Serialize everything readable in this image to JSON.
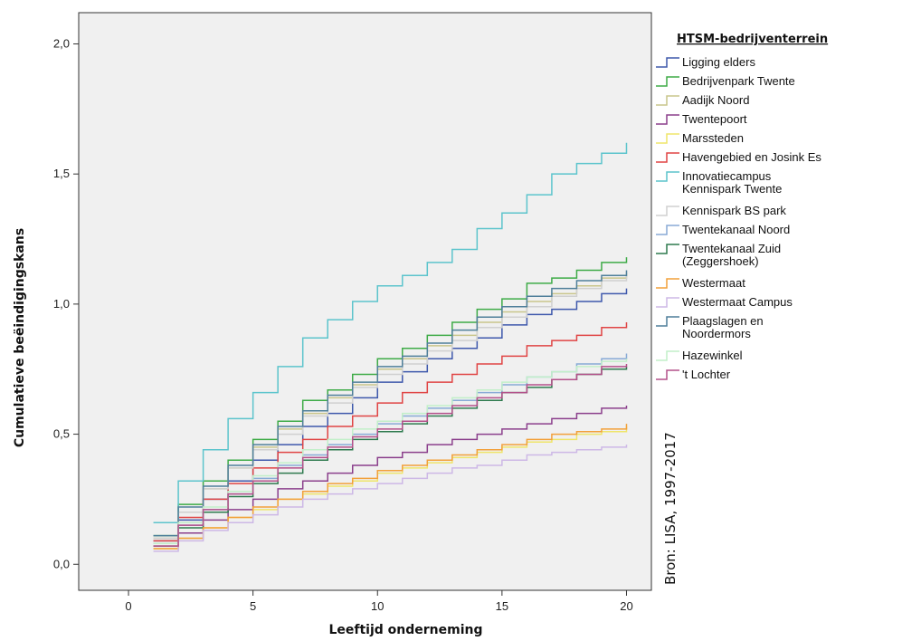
{
  "chart_data": {
    "type": "line",
    "step": true,
    "xlabel": "Leeftijd onderneming",
    "ylabel": "Cumulatieve beëindigingskans",
    "xlim": [
      -2,
      21
    ],
    "ylim": [
      -0.1,
      2.12
    ],
    "xticks": [
      0,
      5,
      10,
      15,
      20
    ],
    "xtick_labels": [
      "0",
      "5",
      "10",
      "15",
      "20"
    ],
    "yticks": [
      0,
      0.5,
      1.0,
      1.5,
      2.0
    ],
    "ytick_labels": [
      "0,0",
      "0,5",
      "1,0",
      "1,5",
      "2,0"
    ],
    "grid": false,
    "plot_background": "#f0f0f0",
    "legend": {
      "title": "HTSM-bedrijventerrein",
      "placement": "right"
    },
    "source_note": "Bron: LISA, 1997-2017",
    "x": [
      1,
      2,
      3,
      4,
      5,
      6,
      7,
      8,
      9,
      10,
      11,
      12,
      13,
      14,
      15,
      16,
      17,
      18,
      19,
      20
    ],
    "series": [
      {
        "name": "Ligging elders",
        "color": "#3e58ac",
        "values": [
          0.09,
          0.17,
          0.25,
          0.32,
          0.4,
          0.46,
          0.53,
          0.58,
          0.64,
          0.7,
          0.74,
          0.79,
          0.83,
          0.87,
          0.92,
          0.96,
          0.98,
          1.01,
          1.04,
          1.06
        ]
      },
      {
        "name": "Bedrijvenpark Twente",
        "color": "#3eab47",
        "values": [
          0.11,
          0.23,
          0.32,
          0.4,
          0.48,
          0.55,
          0.63,
          0.67,
          0.73,
          0.79,
          0.83,
          0.88,
          0.93,
          0.98,
          1.02,
          1.08,
          1.1,
          1.13,
          1.16,
          1.18
        ]
      },
      {
        "name": "Aadijk Noord",
        "color": "#c9c58b",
        "values": [
          0.1,
          0.2,
          0.29,
          0.37,
          0.45,
          0.52,
          0.58,
          0.64,
          0.69,
          0.75,
          0.79,
          0.84,
          0.88,
          0.93,
          0.97,
          1.01,
          1.04,
          1.07,
          1.1,
          1.12
        ]
      },
      {
        "name": "Twentepoort",
        "color": "#8b3f8c",
        "values": [
          0.08,
          0.12,
          0.17,
          0.21,
          0.25,
          0.29,
          0.32,
          0.35,
          0.38,
          0.41,
          0.43,
          0.46,
          0.48,
          0.5,
          0.52,
          0.54,
          0.56,
          0.58,
          0.6,
          0.61
        ]
      },
      {
        "name": "Marssteden",
        "color": "#efe56a",
        "values": [
          0.06,
          0.1,
          0.14,
          0.18,
          0.21,
          0.25,
          0.27,
          0.3,
          0.32,
          0.35,
          0.37,
          0.39,
          0.41,
          0.43,
          0.45,
          0.47,
          0.48,
          0.5,
          0.51,
          0.53
        ]
      },
      {
        "name": "Havengebied en Josink Es",
        "color": "#e04444",
        "values": [
          0.09,
          0.18,
          0.25,
          0.31,
          0.37,
          0.43,
          0.48,
          0.53,
          0.57,
          0.62,
          0.66,
          0.7,
          0.73,
          0.77,
          0.8,
          0.84,
          0.86,
          0.88,
          0.91,
          0.93
        ]
      },
      {
        "name": "Innovatiecampus Kennispark Twente",
        "color": "#5cc4cc",
        "values": [
          0.16,
          0.32,
          0.44,
          0.56,
          0.66,
          0.76,
          0.87,
          0.94,
          1.01,
          1.07,
          1.11,
          1.16,
          1.21,
          1.29,
          1.35,
          1.42,
          1.5,
          1.54,
          1.58,
          1.62
        ]
      },
      {
        "name": "Kennispark BS park",
        "color": "#d0d0d0",
        "values": [
          0.1,
          0.2,
          0.29,
          0.37,
          0.44,
          0.5,
          0.57,
          0.62,
          0.68,
          0.73,
          0.77,
          0.82,
          0.86,
          0.91,
          0.95,
          0.99,
          1.03,
          1.06,
          1.09,
          1.11
        ]
      },
      {
        "name": "Twentekanaal Noord",
        "color": "#88aad6",
        "values": [
          0.08,
          0.15,
          0.21,
          0.27,
          0.33,
          0.38,
          0.42,
          0.46,
          0.5,
          0.54,
          0.57,
          0.6,
          0.63,
          0.66,
          0.69,
          0.72,
          0.74,
          0.77,
          0.79,
          0.81
        ]
      },
      {
        "name": "Twentekanaal Zuid (Zeggershoek)",
        "color": "#2e7a4e",
        "values": [
          0.07,
          0.14,
          0.2,
          0.26,
          0.31,
          0.35,
          0.4,
          0.44,
          0.48,
          0.51,
          0.54,
          0.57,
          0.6,
          0.63,
          0.66,
          0.68,
          0.71,
          0.73,
          0.75,
          0.76
        ]
      },
      {
        "name": "Westermaat",
        "color": "#f2a03a",
        "values": [
          0.06,
          0.1,
          0.14,
          0.18,
          0.22,
          0.25,
          0.28,
          0.31,
          0.33,
          0.36,
          0.38,
          0.4,
          0.42,
          0.44,
          0.46,
          0.48,
          0.5,
          0.51,
          0.52,
          0.54
        ]
      },
      {
        "name": "Westermaat Campus",
        "color": "#cdb8e6",
        "values": [
          0.05,
          0.09,
          0.13,
          0.16,
          0.19,
          0.22,
          0.25,
          0.27,
          0.29,
          0.31,
          0.33,
          0.35,
          0.37,
          0.38,
          0.4,
          0.42,
          0.43,
          0.44,
          0.45,
          0.46
        ]
      },
      {
        "name": "Plaagslagen en Noordermors",
        "color": "#4f7f9a",
        "values": [
          0.11,
          0.22,
          0.3,
          0.38,
          0.46,
          0.53,
          0.59,
          0.65,
          0.7,
          0.76,
          0.8,
          0.85,
          0.9,
          0.95,
          0.99,
          1.03,
          1.06,
          1.09,
          1.11,
          1.13
        ]
      },
      {
        "name": "Hazewinkel",
        "color": "#c2efc9",
        "values": [
          0.08,
          0.16,
          0.22,
          0.28,
          0.34,
          0.39,
          0.44,
          0.48,
          0.52,
          0.55,
          0.58,
          0.61,
          0.64,
          0.67,
          0.7,
          0.72,
          0.74,
          0.76,
          0.78,
          0.79
        ]
      },
      {
        "name": "'t Lochter",
        "color": "#b4508a",
        "values": [
          0.07,
          0.15,
          0.21,
          0.27,
          0.32,
          0.37,
          0.41,
          0.45,
          0.49,
          0.52,
          0.55,
          0.58,
          0.61,
          0.64,
          0.66,
          0.69,
          0.71,
          0.73,
          0.76,
          0.77
        ]
      }
    ]
  }
}
